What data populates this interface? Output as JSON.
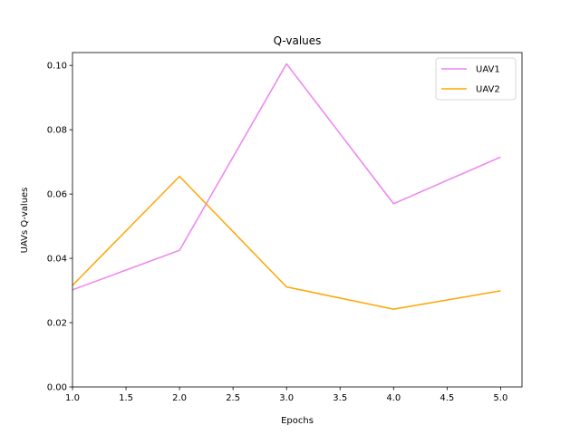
{
  "chart_data": {
    "type": "line",
    "title": "Q-values",
    "xlabel": "Epochs",
    "ylabel": "UAVs Q-values",
    "xlim": [
      1.0,
      5.2
    ],
    "ylim": [
      0.0,
      0.104
    ],
    "xticks": [
      "1.0",
      "1.5",
      "2.0",
      "2.5",
      "3.0",
      "3.5",
      "4.0",
      "4.5",
      "5.0"
    ],
    "yticks": [
      "0.00",
      "0.02",
      "0.04",
      "0.06",
      "0.08",
      "0.10"
    ],
    "x": [
      1,
      2,
      3,
      4,
      5
    ],
    "series": [
      {
        "name": "UAV1",
        "color": "#ee82ee",
        "values": [
          0.0302,
          0.0425,
          0.1005,
          0.057,
          0.0715
        ]
      },
      {
        "name": "UAV2",
        "color": "#ffa500",
        "values": [
          0.0316,
          0.0655,
          0.0311,
          0.0242,
          0.0299
        ]
      }
    ],
    "legend": "top-right",
    "grid": false
  }
}
